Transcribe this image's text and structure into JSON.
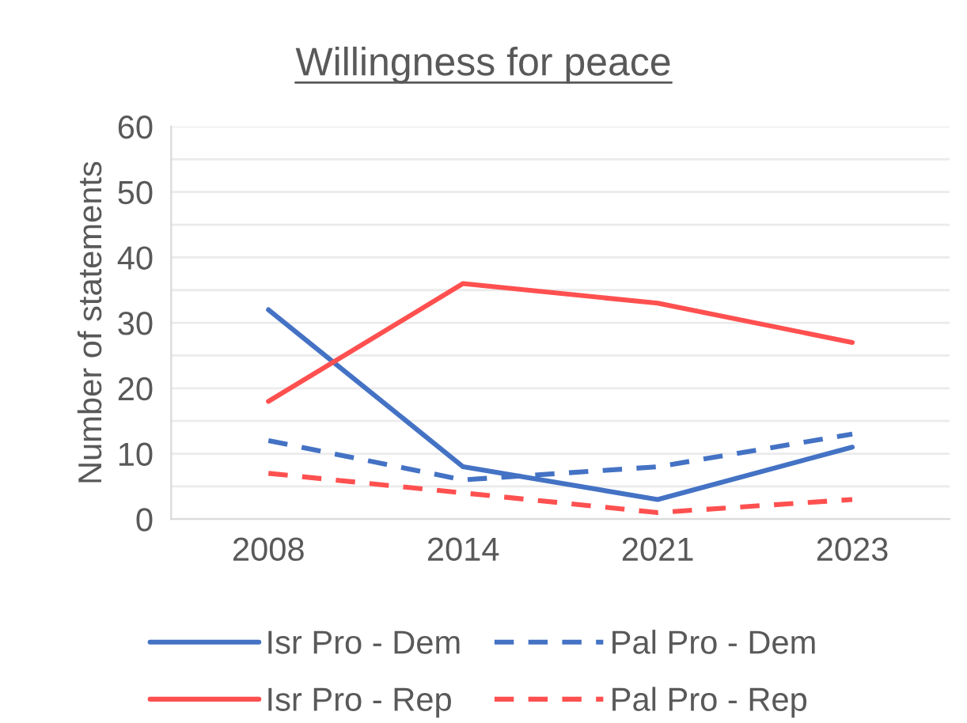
{
  "chart_data": {
    "type": "line",
    "title": "Willingness for peace",
    "ylabel": "Number of statements",
    "categories": [
      "2008",
      "2014",
      "2021",
      "2023"
    ],
    "series": [
      {
        "name": "Isr Pro - Dem",
        "color": "#4472c4",
        "line_style": "solid",
        "values": [
          32,
          8,
          3,
          11
        ]
      },
      {
        "name": "Isr Pro - Rep",
        "color": "#ff5050",
        "line_style": "solid",
        "values": [
          18,
          36,
          33,
          27
        ]
      },
      {
        "name": "Pal Pro - Dem",
        "color": "#4472c4",
        "line_style": "dashed",
        "values": [
          12,
          6,
          8,
          13
        ]
      },
      {
        "name": "Pal Pro - Rep",
        "color": "#ff5050",
        "line_style": "dashed",
        "values": [
          7,
          4,
          1,
          3
        ]
      }
    ],
    "ylim": [
      0,
      60
    ],
    "yticks": [
      0,
      {
        "value": 5,
        "label": null
      },
      10,
      {
        "value": 15,
        "label": null
      },
      20,
      {
        "value": 25,
        "label": null
      },
      30,
      {
        "value": 35,
        "label": null
      },
      40,
      {
        "value": 45,
        "label": null
      },
      50,
      {
        "value": 55,
        "label": null
      },
      60
    ],
    "grid": "y",
    "legend": "bottom",
    "marker": "none"
  }
}
